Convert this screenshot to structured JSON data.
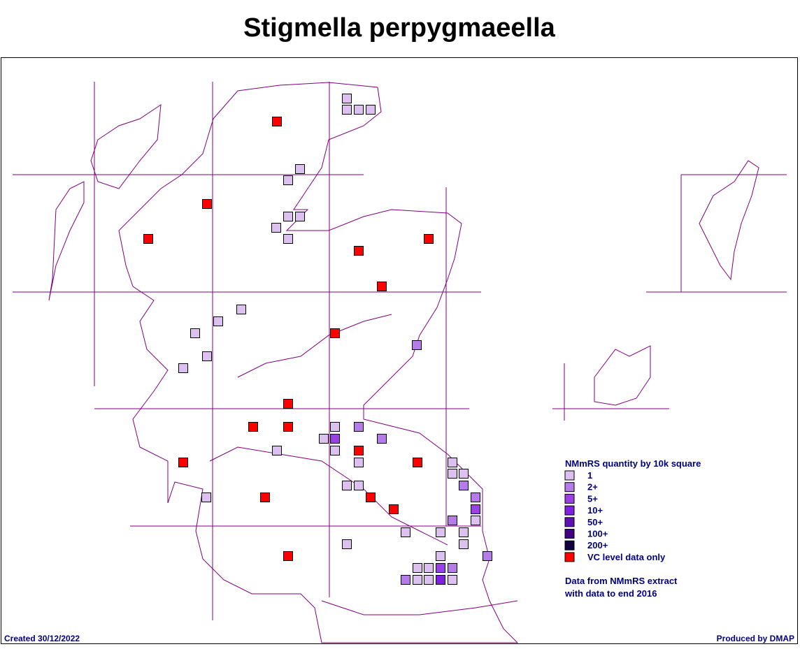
{
  "title": "Stigmella perpygmaeella",
  "legend": {
    "heading": "NMmRS quantity by 10k square",
    "items": [
      {
        "label": "1",
        "color": "#dcc0f0"
      },
      {
        "label": "2+",
        "color": "#b57be8"
      },
      {
        "label": "5+",
        "color": "#9a40e6"
      },
      {
        "label": "10+",
        "color": "#8020e0"
      },
      {
        "label": "50+",
        "color": "#6010b0"
      },
      {
        "label": "100+",
        "color": "#400080"
      },
      {
        "label": "200+",
        "color": "#100040"
      },
      {
        "label": "VC level data only",
        "color": "#ff0000"
      }
    ]
  },
  "note": [
    "Data from NMmRS extract",
    "with data to end 2016"
  ],
  "footer": {
    "created": "Created 30/12/2022",
    "produced": "Produced by DMAP"
  }
}
